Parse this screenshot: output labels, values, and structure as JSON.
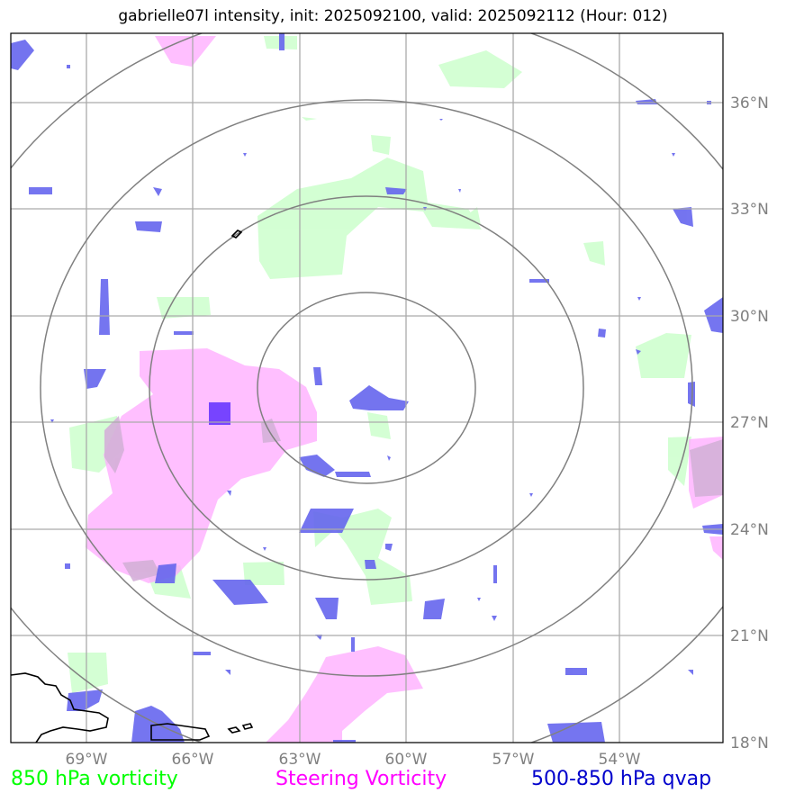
{
  "title": "gabrielle07l intensity, init: 2025092100, valid: 2025092112 (Hour: 012)",
  "lon_labels": [
    "69°W",
    "66°W",
    "63°W",
    "60°W",
    "57°W",
    "54°W"
  ],
  "lat_labels": [
    "36°N",
    "33°N",
    "30°N",
    "27°N",
    "24°N",
    "21°N",
    "18°N"
  ],
  "legend": {
    "vort850": "850 hPa vorticity",
    "steering": "Steering Vorticity",
    "qvap": "500-850 hPa qvap"
  },
  "colors": {
    "vort850": "#ccffcc",
    "steering": "#ffaaff",
    "qvap": "#6666ee",
    "grid": "#aaaaaa",
    "rings": "#808080"
  }
}
